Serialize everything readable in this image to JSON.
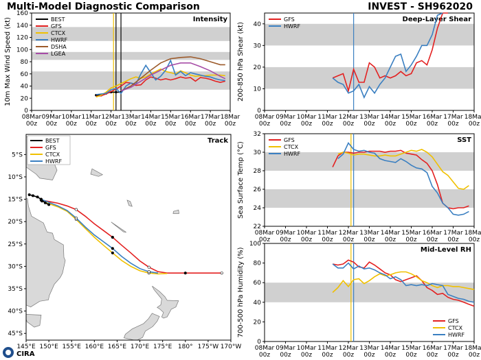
{
  "header": {
    "title": "Multi-Model Diagnostic Comparison",
    "storm_id": "INVEST - SH962020"
  },
  "logo_text": "CIRA",
  "colors": {
    "BEST": "#000000",
    "GFS": "#e32020",
    "CTCX": "#f0c000",
    "HWRF": "#3a7fc1",
    "DSHA": "#9c5a2a",
    "LGEA": "#a64ca6",
    "band": "#d0d0d0",
    "ocean": "#ffffff",
    "land": "#d9d9d9",
    "coast": "#777777"
  },
  "chart_data": [
    {
      "id": "intensity",
      "type": "line",
      "title": "Intensity",
      "ylabel": "10m Max Wind Speed (kt)",
      "ylim": [
        0,
        160
      ],
      "yticks": [
        "0",
        "20",
        "40",
        "60",
        "80",
        "100",
        "120",
        "140",
        "160"
      ],
      "xlim": [
        0,
        240
      ],
      "xticks": [
        "08Mar\n00z",
        "09Mar\n00z",
        "10Mar\n00z",
        "11Mar\n00z",
        "12Mar\n00z",
        "13Mar\n00z",
        "14Mar\n00z",
        "15Mar\n00z",
        "16Mar\n00z",
        "17Mar\n00z",
        "18Mar\n00z"
      ],
      "bands": [
        [
          34,
          64
        ],
        [
          83,
          96
        ],
        [
          114,
          137
        ]
      ],
      "vlines": [
        {
          "x": 99,
          "color": "#f0c000"
        },
        {
          "x": 102,
          "color": "#000000"
        },
        {
          "x": 108,
          "color": "#000000"
        }
      ],
      "legend_position": "top-left",
      "legend": [
        "BEST",
        "GFS",
        "CTCX",
        "HWRF",
        "DSHA",
        "LGEA"
      ],
      "series": [
        {
          "name": "BEST",
          "x": [
            78,
            84,
            90,
            96,
            102,
            108
          ],
          "y": [
            25,
            25,
            28,
            30,
            30,
            30
          ],
          "markers": true
        },
        {
          "name": "GFS",
          "x": [
            78,
            84,
            90,
            96,
            102,
            108,
            114,
            120,
            126,
            132,
            138,
            144,
            150,
            156,
            162,
            168,
            174,
            180,
            186,
            192,
            198,
            204,
            210,
            216,
            222,
            228,
            234
          ],
          "y": [
            23,
            24,
            27,
            31,
            35,
            40,
            46,
            45,
            41,
            42,
            50,
            55,
            53,
            50,
            52,
            50,
            52,
            55,
            53,
            54,
            48,
            54,
            53,
            51,
            48,
            46,
            48
          ]
        },
        {
          "name": "CTCX",
          "x": [
            78,
            84,
            90,
            96,
            102,
            108,
            114,
            120,
            126,
            132,
            138,
            144,
            150,
            156,
            162,
            168,
            174,
            180,
            186,
            192,
            198,
            204,
            210,
            216,
            222,
            228,
            234
          ],
          "y": [
            22,
            25,
            30,
            37,
            40,
            44,
            48,
            52,
            55,
            53,
            55,
            60,
            64,
            68,
            64,
            62,
            60,
            65,
            62,
            58,
            56,
            57,
            57,
            58,
            58,
            58,
            57
          ]
        },
        {
          "name": "HWRF",
          "x": [
            78,
            84,
            90,
            96,
            102,
            108,
            114,
            120,
            126,
            132,
            138,
            144,
            150,
            156,
            162,
            168,
            174,
            180,
            186,
            192,
            198,
            204,
            210,
            216,
            222,
            228,
            234
          ],
          "y": [
            26,
            27,
            28,
            34,
            36,
            28,
            40,
            45,
            43,
            60,
            74,
            62,
            50,
            56,
            66,
            82,
            58,
            64,
            57,
            62,
            60,
            58,
            56,
            55,
            52,
            50,
            49
          ]
        },
        {
          "name": "DSHA",
          "x": [
            108,
            120,
            132,
            144,
            156,
            168,
            180,
            192,
            204,
            216,
            228,
            234
          ],
          "y": [
            32,
            40,
            53,
            66,
            78,
            85,
            87,
            88,
            85,
            80,
            75,
            75
          ]
        },
        {
          "name": "LGEA",
          "x": [
            108,
            120,
            132,
            144,
            156,
            168,
            180,
            192,
            204,
            216,
            228,
            234
          ],
          "y": [
            32,
            38,
            48,
            58,
            66,
            74,
            78,
            78,
            72,
            65,
            56,
            52
          ]
        }
      ]
    },
    {
      "id": "shear",
      "type": "line",
      "title": "Deep-Layer Shear",
      "ylabel": "200-850 hPa Shear (kt)",
      "ylim": [
        0,
        45
      ],
      "yticks": [
        "0",
        "10",
        "20",
        "30",
        "40"
      ],
      "xlim": [
        0,
        240
      ],
      "xticks": [
        "08Mar\n00z",
        "09Mar\n00z",
        "10Mar\n00z",
        "11Mar\n00z",
        "12Mar\n00z",
        "13Mar\n00z",
        "14Mar\n00z",
        "15Mar\n00z",
        "16Mar\n00z",
        "17Mar\n00z",
        "18Mar\n00z"
      ],
      "bands": [
        [
          10,
          20
        ],
        [
          30,
          40
        ]
      ],
      "vlines": [
        {
          "x": 102,
          "color": "#3a7fc1"
        }
      ],
      "legend_position": "top-left",
      "legend": [
        "GFS",
        "HWRF"
      ],
      "series": [
        {
          "name": "GFS",
          "x": [
            78,
            84,
            90,
            96,
            102,
            108,
            114,
            120,
            126,
            132,
            138,
            144,
            150,
            156,
            162,
            168,
            174,
            180,
            186,
            192,
            198,
            204,
            210
          ],
          "y": [
            15,
            16,
            17,
            9,
            19,
            13,
            13,
            22,
            20,
            15,
            16,
            15,
            16,
            18,
            16,
            17,
            22,
            23,
            21,
            28,
            38,
            45,
            45
          ]
        },
        {
          "name": "HWRF",
          "x": [
            78,
            84,
            90,
            96,
            102,
            108,
            114,
            120,
            126,
            132,
            138,
            144,
            150,
            156,
            162,
            168,
            174,
            180,
            186,
            192,
            198,
            204
          ],
          "y": [
            15,
            13,
            12,
            8,
            9,
            12,
            6,
            11,
            8,
            12,
            15,
            20,
            25,
            26,
            18,
            21,
            25,
            30,
            30,
            35,
            44,
            46
          ]
        }
      ]
    },
    {
      "id": "sst",
      "type": "line",
      "title": "SST",
      "ylabel": "Sea Surface Temp (°C)",
      "ylim": [
        22,
        32
      ],
      "yticks": [
        "22",
        "24",
        "26",
        "28",
        "30",
        "32"
      ],
      "xlim": [
        0,
        240
      ],
      "xticks": [
        "08Mar\n00z",
        "09Mar\n00z",
        "10Mar\n00z",
        "11Mar\n00z",
        "12Mar\n00z",
        "13Mar\n00z",
        "14Mar\n00z",
        "15Mar\n00z",
        "16Mar\n00z",
        "17Mar\n00z",
        "18Mar\n00z"
      ],
      "bands": [
        [
          24,
          26
        ],
        [
          28,
          30
        ]
      ],
      "vlines": [
        {
          "x": 99,
          "color": "#f0c000"
        },
        {
          "x": 102,
          "color": "#3a7fc1"
        }
      ],
      "legend_position": "top-left",
      "legend": [
        "GFS",
        "CTCX",
        "HWRF"
      ],
      "series": [
        {
          "name": "GFS",
          "x": [
            78,
            84,
            90,
            96,
            102,
            108,
            114,
            120,
            126,
            132,
            138,
            144,
            150,
            156,
            162,
            168,
            174,
            180,
            186,
            192,
            198,
            204,
            210,
            216,
            222,
            228,
            234
          ],
          "y": [
            28.4,
            29.6,
            30.0,
            30.0,
            29.9,
            30.0,
            30.0,
            30.1,
            30.1,
            30.1,
            30.0,
            30.1,
            30.1,
            30.2,
            29.9,
            29.8,
            29.7,
            29.2,
            28.8,
            28.0,
            26.5,
            24.5,
            24.0,
            23.9,
            24.0,
            24.0,
            24.2
          ]
        },
        {
          "name": "CTCX",
          "x": [
            84,
            90,
            96,
            102,
            108,
            114,
            120,
            126,
            132,
            138,
            144,
            150,
            156,
            162,
            168,
            174,
            180,
            186,
            192,
            198,
            204,
            210,
            216,
            222,
            228,
            234
          ],
          "y": [
            29.8,
            30.0,
            29.9,
            29.7,
            29.8,
            29.8,
            29.7,
            29.6,
            29.6,
            29.7,
            29.6,
            29.6,
            29.8,
            30.0,
            30.2,
            30.1,
            30.3,
            30.0,
            29.5,
            28.7,
            27.9,
            27.5,
            26.8,
            26.1,
            26.0,
            26.4
          ]
        },
        {
          "name": "HWRF",
          "x": [
            84,
            90,
            96,
            102,
            108,
            114,
            120,
            126,
            132,
            138,
            144,
            150,
            156,
            162,
            168,
            174,
            180,
            186,
            192,
            198,
            204,
            210,
            216,
            222,
            228,
            234
          ],
          "y": [
            29.3,
            29.8,
            31.0,
            30.3,
            30.1,
            30.2,
            30.0,
            29.9,
            29.3,
            29.1,
            29.0,
            28.9,
            29.3,
            29.0,
            28.6,
            28.3,
            28.2,
            27.8,
            26.3,
            25.6,
            24.5,
            24.0,
            23.3,
            23.2,
            23.3,
            23.6
          ]
        }
      ]
    },
    {
      "id": "rh",
      "type": "line",
      "title": "Mid-Level RH",
      "ylabel": "700-500 hPa Humidity (%)",
      "ylim": [
        0,
        100
      ],
      "yticks": [
        "0",
        "20",
        "40",
        "60",
        "80",
        "100"
      ],
      "xlim": [
        0,
        240
      ],
      "xticks": [
        "08Mar\n00z",
        "09Mar\n00z",
        "10Mar\n00z",
        "11Mar\n00z",
        "12Mar\n00z",
        "13Mar\n00z",
        "14Mar\n00z",
        "15Mar\n00z",
        "16Mar\n00z",
        "17Mar\n00z",
        "18Mar\n00z"
      ],
      "bands": [
        [
          40,
          60
        ]
      ],
      "vlines": [
        {
          "x": 99,
          "color": "#f0c000"
        },
        {
          "x": 102,
          "color": "#3a7fc1"
        }
      ],
      "legend_position": "bottom-right",
      "legend": [
        "GFS",
        "CTCX",
        "HWRF"
      ],
      "series": [
        {
          "name": "GFS",
          "x": [
            78,
            84,
            90,
            96,
            102,
            108,
            114,
            120,
            126,
            132,
            138,
            144,
            150,
            156,
            162,
            168,
            174,
            180,
            186,
            192,
            198,
            204,
            210,
            216,
            222,
            228,
            234,
            240
          ],
          "y": [
            79,
            78,
            79,
            83,
            81,
            76,
            75,
            81,
            78,
            74,
            70,
            68,
            63,
            61,
            63,
            65,
            67,
            62,
            55,
            52,
            48,
            49,
            45,
            43,
            42,
            40,
            38,
            36
          ]
        },
        {
          "name": "CTCX",
          "x": [
            78,
            84,
            90,
            96,
            102,
            108,
            114,
            120,
            126,
            132,
            138,
            144,
            150,
            156,
            162,
            168,
            174,
            180,
            186,
            192,
            198,
            204,
            210,
            216,
            222,
            228,
            234,
            240
          ],
          "y": [
            50,
            55,
            62,
            56,
            63,
            64,
            59,
            62,
            66,
            69,
            67,
            68,
            70,
            71,
            71,
            69,
            66,
            62,
            60,
            57,
            55,
            57,
            57,
            56,
            56,
            55,
            54,
            53
          ]
        },
        {
          "name": "HWRF",
          "x": [
            78,
            84,
            90,
            96,
            102,
            108,
            114,
            120,
            126,
            132,
            138,
            144,
            150,
            156,
            162,
            168,
            174,
            180,
            186,
            192,
            198,
            204,
            210,
            216,
            222,
            228,
            234,
            240
          ],
          "y": [
            79,
            75,
            75,
            80,
            74,
            77,
            74,
            75,
            73,
            70,
            68,
            64,
            66,
            63,
            57,
            58,
            57,
            58,
            57,
            59,
            58,
            57,
            48,
            46,
            44,
            43,
            41,
            40
          ]
        }
      ]
    },
    {
      "id": "track",
      "type": "line",
      "title": "Track",
      "lon_range": [
        145,
        190
      ],
      "lat_range": [
        -46.5,
        -0.5
      ],
      "lon_ticks": [
        "145°E",
        "150°E",
        "155°E",
        "160°E",
        "165°E",
        "170°E",
        "175°E",
        "180°",
        "175°W",
        "170°W"
      ],
      "lat_ticks": [
        "5°S",
        "10°S",
        "15°S",
        "20°S",
        "25°S",
        "30°S",
        "35°S",
        "40°S",
        "45°S"
      ],
      "legend_position": "top-left",
      "legend": [
        "BEST",
        "GFS",
        "CTCX",
        "HWRF"
      ],
      "series": [
        {
          "name": "GFS",
          "lon": [
            148.3,
            150,
            152,
            154,
            156,
            158,
            160,
            162,
            164,
            166,
            168,
            170,
            172,
            174,
            176,
            178,
            180,
            182,
            184,
            186,
            188
          ],
          "lat": [
            -15.2,
            -15.5,
            -15.9,
            -16.5,
            -17.3,
            -18.8,
            -20.5,
            -22,
            -23.5,
            -25.3,
            -27,
            -28.8,
            -30.2,
            -31.2,
            -31.5,
            -31.5,
            -31.5,
            -31.5,
            -31.5,
            -31.5,
            -31.5
          ]
        },
        {
          "name": "CTCX",
          "lon": [
            148.5,
            150,
            152,
            154,
            156,
            158,
            160,
            162,
            164,
            166,
            168,
            170,
            172,
            174,
            176
          ],
          "lat": [
            -15.4,
            -16,
            -16.7,
            -17.7,
            -19.5,
            -21.5,
            -23.5,
            -25.3,
            -27,
            -28.7,
            -30,
            -31,
            -31.5,
            -31.7,
            -31.6
          ]
        },
        {
          "name": "HWRF",
          "lon": [
            148.3,
            150,
            152,
            154,
            156,
            158,
            160,
            162,
            164,
            166,
            168,
            170,
            172,
            174
          ],
          "lat": [
            -15.0,
            -15.7,
            -16.5,
            -17.5,
            -19.2,
            -21.2,
            -23,
            -24.5,
            -26,
            -27.8,
            -29.3,
            -30.5,
            -31.2,
            -31.5
          ]
        },
        {
          "name": "BEST",
          "lon": [
            145.7,
            146.5,
            147.5,
            148.3,
            149.2,
            150
          ],
          "lat": [
            -14,
            -14.2,
            -14.5,
            -15.0,
            -15.8,
            -16.2
          ],
          "markers": true
        }
      ],
      "land": "Australia and New Zealand"
    }
  ]
}
